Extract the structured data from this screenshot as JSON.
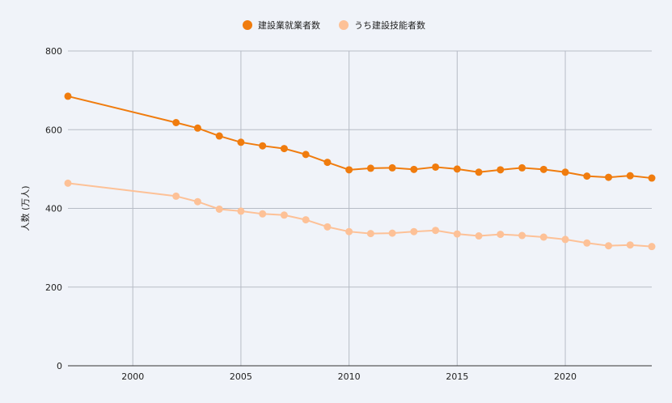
{
  "chart_data": {
    "type": "line",
    "title": "",
    "xlabel": "",
    "ylabel": "人数 (万人)",
    "xlim": [
      1997,
      2024
    ],
    "ylim": [
      0,
      800
    ],
    "x_ticks": [
      "2000",
      "2005",
      "2010",
      "2015",
      "2020"
    ],
    "y_ticks": [
      "0",
      "200",
      "400",
      "600",
      "800"
    ],
    "grid": true,
    "legend_position": "top-center",
    "x": [
      1997,
      2002,
      2003,
      2004,
      2005,
      2006,
      2007,
      2008,
      2009,
      2010,
      2011,
      2012,
      2013,
      2014,
      2015,
      2016,
      2017,
      2018,
      2019,
      2020,
      2021,
      2022,
      2023,
      2024
    ],
    "series": [
      {
        "name": "建設業就業者数",
        "color": "#f07c0e",
        "values": [
          685,
          618,
          604,
          584,
          568,
          559,
          552,
          537,
          517,
          498,
          502,
          503,
          499,
          505,
          500,
          492,
          498,
          503,
          499,
          492,
          482,
          479,
          483,
          477
        ]
      },
      {
        "name": "うち建設技能者数",
        "color": "#fdc197",
        "values": [
          464,
          431,
          417,
          398,
          393,
          386,
          383,
          371,
          353,
          341,
          336,
          337,
          341,
          344,
          335,
          330,
          334,
          331,
          327,
          321,
          312,
          305,
          307,
          303
        ]
      }
    ]
  }
}
